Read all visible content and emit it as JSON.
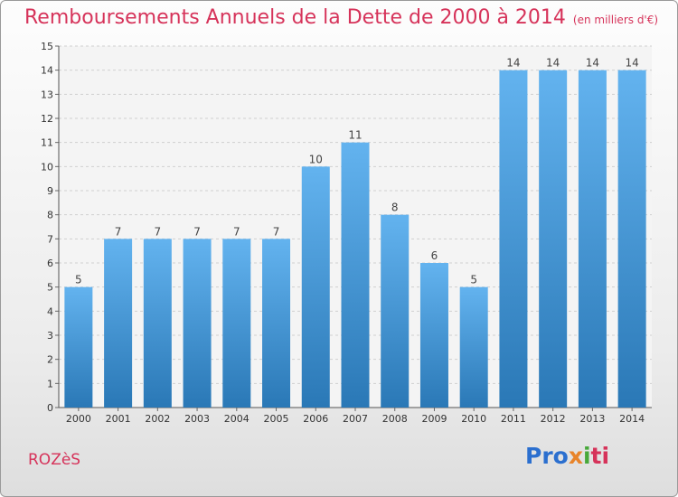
{
  "header": {
    "title": "Remboursements Annuels de la Dette de 2000 à 2014",
    "unit": "(en milliers d'€)"
  },
  "footer": {
    "commune": "ROZèS",
    "logo_parts": [
      "Pro",
      "x",
      "i",
      "ti"
    ]
  },
  "colors": {
    "title": "#d6335a",
    "bar_top": "#63b3ef",
    "bar_bottom": "#2a78b6"
  },
  "chart_data": {
    "type": "bar",
    "categories": [
      "2000",
      "2001",
      "2002",
      "2003",
      "2004",
      "2005",
      "2006",
      "2007",
      "2008",
      "2009",
      "2010",
      "2011",
      "2012",
      "2013",
      "2014"
    ],
    "values": [
      5,
      7,
      7,
      7,
      7,
      7,
      10,
      11,
      8,
      6,
      5,
      14,
      14,
      14,
      14
    ],
    "ylim": [
      0,
      15
    ],
    "yticks": [
      0,
      1,
      2,
      3,
      4,
      5,
      6,
      7,
      8,
      9,
      10,
      11,
      12,
      13,
      14,
      15
    ],
    "grid": true,
    "legend": "none",
    "data_labels": true
  }
}
